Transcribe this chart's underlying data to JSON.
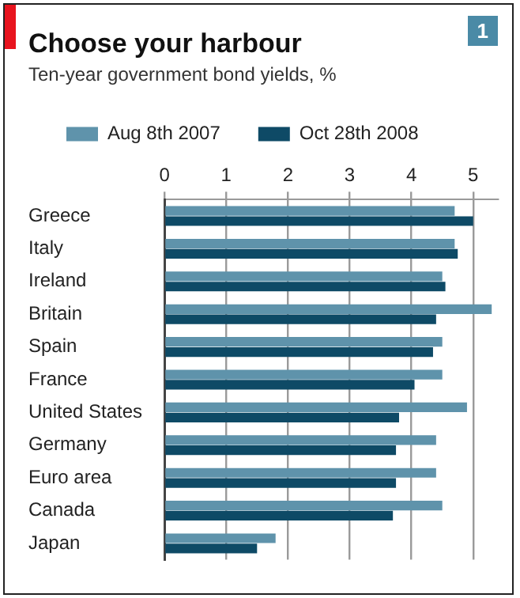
{
  "chart_data": {
    "type": "bar",
    "orientation": "horizontal",
    "title": "Choose your harbour",
    "subtitle": "Ten-year government bond yields, %",
    "categories": [
      "Greece",
      "Italy",
      "Ireland",
      "Britain",
      "Spain",
      "France",
      "United States",
      "Germany",
      "Euro area",
      "Canada",
      "Japan"
    ],
    "series": [
      {
        "name": "Aug 8th 2007",
        "color": "#5f93ab",
        "values": [
          4.7,
          4.7,
          4.5,
          5.3,
          4.5,
          4.5,
          4.9,
          4.4,
          4.4,
          4.5,
          1.8
        ]
      },
      {
        "name": "Oct 28th 2008",
        "color": "#0e4a66",
        "values": [
          5.0,
          4.75,
          4.55,
          4.4,
          4.35,
          4.05,
          3.8,
          3.75,
          3.75,
          3.7,
          1.5
        ]
      }
    ],
    "xlim": [
      0,
      5.4
    ],
    "xticks": [
      0,
      1,
      2,
      3,
      4,
      5
    ],
    "grid": "x",
    "legend": "top",
    "annotations": [
      "1"
    ]
  }
}
